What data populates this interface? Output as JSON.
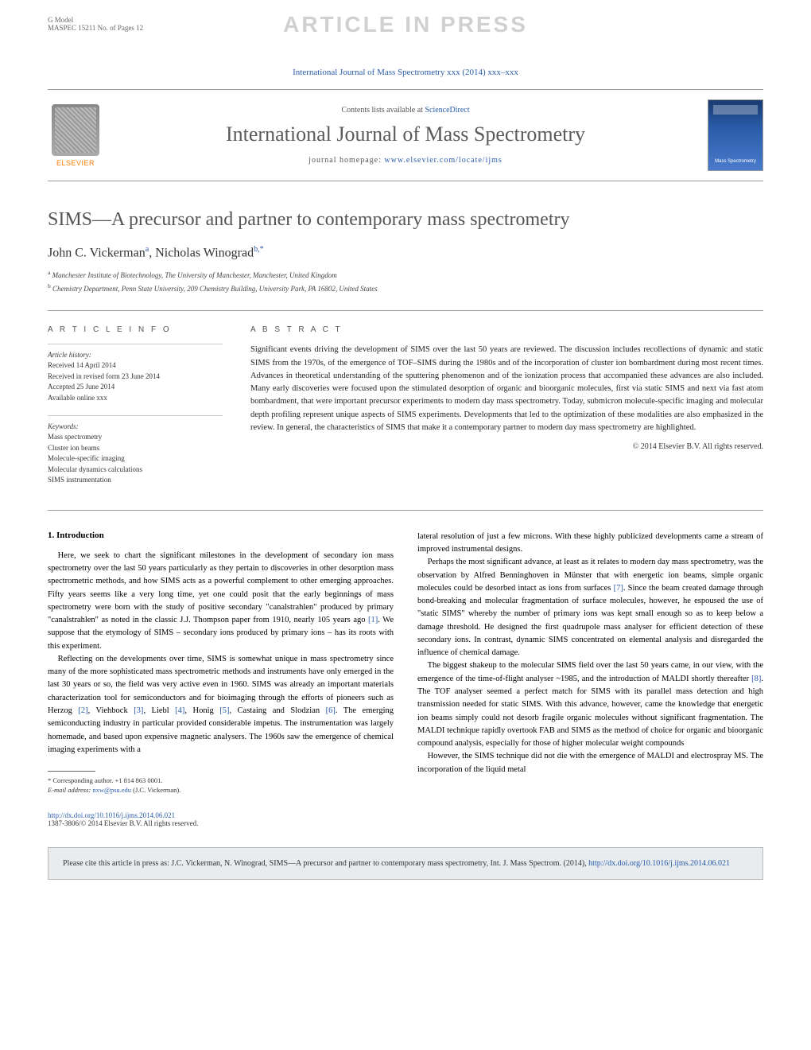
{
  "gmodel": {
    "line1": "G Model",
    "line2": "MASPEC 15211 No. of Pages 12"
  },
  "watermark": "ARTICLE IN PRESS",
  "journal_ref": "International Journal of Mass Spectrometry xxx (2014) xxx–xxx",
  "header": {
    "contents_prefix": "Contents lists available at ",
    "contents_link": "ScienceDirect",
    "journal_title": "International Journal of Mass Spectrometry",
    "homepage_prefix": "journal homepage: ",
    "homepage_link": "www.elsevier.com/locate/ijms",
    "elsevier": "ELSEVIER",
    "cover_label": "Mass Spectrometry"
  },
  "title": "SIMS—A precursor and partner to contemporary mass spectrometry",
  "authors_html": "John C. Vickerman",
  "author1_sup": "a",
  "author2": ", Nicholas Winograd",
  "author2_sup": "b,*",
  "affil_a": "Manchester Institute of Biotechnology, The University of Manchester, Manchester, United Kingdom",
  "affil_b": "Chemistry Department, Penn State University, 209 Chemistry Building, University Park, PA 16802, United States",
  "info": {
    "heading": "A R T I C L E   I N F O",
    "history_label": "Article history:",
    "history": "Received 14 April 2014\nReceived in revised form 23 June 2014\nAccepted 25 June 2014\nAvailable online xxx",
    "keywords_label": "Keywords:",
    "keywords": "Mass spectrometry\nCluster ion beams\nMolecule-specific imaging\nMolecular dynamics calculations\nSIMS instrumentation"
  },
  "abstract": {
    "heading": "A B S T R A C T",
    "text": "Significant events driving the development of SIMS over the last 50 years are reviewed. The discussion includes recollections of dynamic and static SIMS from the 1970s, of the emergence of TOF–SIMS during the 1980s and of the incorporation of cluster ion bombardment during most recent times. Advances in theoretical understanding of the sputtering phenomenon and of the ionization process that accompanied these advances are also included. Many early discoveries were focused upon the stimulated desorption of organic and bioorganic molecules, first via static SIMS and next via fast atom bombardment, that were important precursor experiments to modern day mass spectrometry. Today, submicron molecule-specific imaging and molecular depth profiling represent unique aspects of SIMS experiments. Developments that led to the optimization of these modalities are also emphasized in the review. In general, the characteristics of SIMS that make it a contemporary partner to modern day mass spectrometry are highlighted.",
    "copyright": "© 2014 Elsevier B.V. All rights reserved."
  },
  "section1_heading": "1. Introduction",
  "col1_p1": "Here, we seek to chart the significant milestones in the development of secondary ion mass spectrometry over the last 50 years particularly as they pertain to discoveries in other desorption mass spectrometric methods, and how SIMS acts as a powerful complement to other emerging approaches. Fifty years seems like a very long time, yet one could posit that the early beginnings of mass spectrometry were born with the study of positive secondary \"canalstrahlen\" produced by primary \"canalstrahlen\" as noted in the classic J.J. Thompson paper from 1910, nearly 105 years ago ",
  "ref1": "[1]",
  "col1_p1b": ". We suppose that the etymology of SIMS – secondary ions produced by primary ions – has its roots with this experiment.",
  "col1_p2a": "Reflecting on the developments over time, SIMS is somewhat unique in mass spectrometry since many of the more sophisticated mass spectrometric methods and instruments have only emerged in the last 30 years or so, the field was very active even in 1960. SIMS was already an important materials characterization tool for semiconductors and for bioimaging through the efforts of pioneers such as Herzog ",
  "ref2": "[2]",
  "col1_p2b": ", Viehbock ",
  "ref3": "[3]",
  "col1_p2c": ", Liebl ",
  "ref4": "[4]",
  "col1_p2d": ", Honig ",
  "ref5": "[5]",
  "col1_p2e": ", Castaing and Slodzian ",
  "ref6": "[6]",
  "col1_p2f": ". The emerging semiconducting industry in particular provided considerable impetus. The instrumentation was largely homemade, and based upon expensive magnetic analysers. The 1960s saw the emergence of chemical imaging experiments with a",
  "col2_p1": "lateral resolution of just a few microns. With these highly publicized developments came a stream of improved instrumental designs.",
  "col2_p2a": "Perhaps the most significant advance, at least as it relates to modern day mass spectrometry, was the observation by Alfred Benninghoven in Münster that with energetic ion beams, simple organic molecules could be desorbed intact as ions from surfaces ",
  "ref7": "[7]",
  "col2_p2b": ". Since the beam created damage through bond-breaking and molecular fragmentation of surface molecules, however, he espoused the use of \"static SIMS\" whereby the number of primary ions was kept small enough so as to keep below a damage threshold. He designed the first quadrupole mass analyser for efficient detection of these secondary ions. In contrast, dynamic SIMS concentrated on elemental analysis and disregarded the influence of chemical damage.",
  "col2_p3a": "The biggest shakeup to the molecular SIMS field over the last 50 years came, in our view, with the emergence of the time-of-flight analyser ~1985, and the introduction of MALDI shortly thereafter ",
  "ref8": "[8]",
  "col2_p3b": ". The TOF analyser seemed a perfect match for SIMS with its parallel mass detection and high transmission needed for static SIMS. With this advance, however, came the knowledge that energetic ion beams simply could not desorb fragile organic molecules without significant fragmentation. The MALDI technique rapidly overtook FAB and SIMS as the method of choice for organic and bioorganic compound analysis, especially for those of higher molecular weight compounds",
  "col2_p4": "However, the SIMS technique did not die with the emergence of MALDI and electrospray MS. The incorporation of the liquid metal",
  "footnote": {
    "corr": "* Corresponding author. +1 814 863 0001.",
    "email_label": "E-mail address: ",
    "email": "nxw@psu.edu",
    "email_suffix": " (J.C. Vickerman)."
  },
  "doi": {
    "link": "http://dx.doi.org/10.1016/j.ijms.2014.06.021",
    "issn": "1387-3806/© 2014 Elsevier B.V. All rights reserved."
  },
  "citebox": {
    "prefix": "Please cite this article in press as: J.C. Vickerman, N. Winograd, SIMS—A precursor and partner to contemporary mass spectrometry, Int. J. Mass Spectrom. (2014), ",
    "link": "http://dx.doi.org/10.1016/j.ijms.2014.06.021"
  }
}
